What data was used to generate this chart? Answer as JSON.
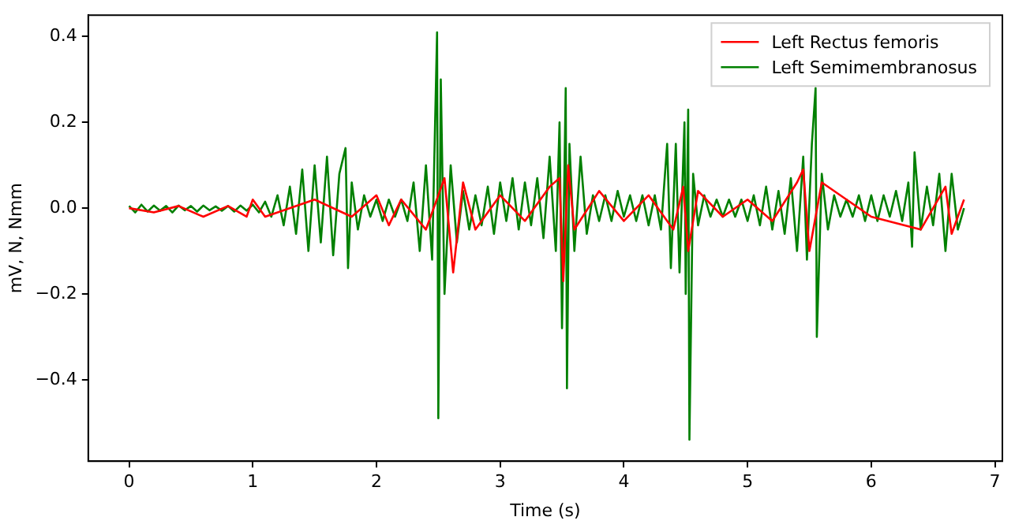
{
  "chart_data": {
    "type": "line",
    "xlabel": "Time (s)",
    "ylabel": "mV, N, Nmm",
    "xlim": [
      -0.33,
      7.06
    ],
    "ylim": [
      -0.59,
      0.45
    ],
    "xticks": [
      0,
      1,
      2,
      3,
      4,
      5,
      6,
      7
    ],
    "yticks": [
      {
        "value": -0.4,
        "label": "−0.4"
      },
      {
        "value": -0.2,
        "label": "−0.2"
      },
      {
        "value": 0,
        "label": "0.0"
      },
      {
        "value": 0.2,
        "label": "0.2"
      },
      {
        "value": 0.4,
        "label": "0.4"
      }
    ],
    "legend": "top right",
    "grid": false,
    "marker": "none",
    "line_style": "solid",
    "series": [
      {
        "name": "Left Rectus femoris",
        "color": "#ff0000",
        "x": [
          0,
          0.2,
          0.4,
          0.6,
          0.8,
          0.95,
          1.0,
          1.1,
          1.5,
          1.8,
          2.0,
          2.1,
          2.2,
          2.4,
          2.55,
          2.62,
          2.7,
          2.8,
          3.0,
          3.2,
          3.4,
          3.48,
          3.51,
          3.55,
          3.6,
          3.8,
          4.0,
          4.2,
          4.4,
          4.48,
          4.52,
          4.6,
          4.8,
          5.0,
          5.2,
          5.4,
          5.45,
          5.5,
          5.6,
          5.8,
          6.0,
          6.4,
          6.6,
          6.65,
          6.75
        ],
        "values": [
          0,
          -0.01,
          0.005,
          -0.02,
          0.005,
          -0.02,
          0.02,
          -0.02,
          0.02,
          -0.02,
          0.03,
          -0.04,
          0.02,
          -0.05,
          0.07,
          -0.15,
          0.06,
          -0.05,
          0.03,
          -0.03,
          0.05,
          0.07,
          -0.17,
          0.1,
          -0.05,
          0.04,
          -0.03,
          0.03,
          -0.05,
          0.05,
          -0.1,
          0.04,
          -0.02,
          0.02,
          -0.03,
          0.06,
          0.09,
          -0.1,
          0.06,
          0.02,
          -0.02,
          -0.05,
          0.05,
          -0.06,
          0.02
        ]
      },
      {
        "name": "Left Semimembranosus",
        "color": "#008000",
        "x": [
          0,
          0.05,
          0.1,
          0.15,
          0.2,
          0.25,
          0.3,
          0.35,
          0.4,
          0.45,
          0.5,
          0.55,
          0.6,
          0.65,
          0.7,
          0.75,
          0.8,
          0.85,
          0.9,
          0.95,
          1.0,
          1.05,
          1.1,
          1.15,
          1.2,
          1.25,
          1.3,
          1.35,
          1.4,
          1.45,
          1.5,
          1.55,
          1.6,
          1.65,
          1.7,
          1.75,
          1.77,
          1.8,
          1.85,
          1.9,
          1.95,
          2.0,
          2.05,
          2.1,
          2.15,
          2.2,
          2.25,
          2.3,
          2.35,
          2.4,
          2.45,
          2.49,
          2.5,
          2.52,
          2.55,
          2.6,
          2.65,
          2.7,
          2.75,
          2.8,
          2.85,
          2.9,
          2.95,
          3.0,
          3.05,
          3.1,
          3.15,
          3.2,
          3.25,
          3.3,
          3.35,
          3.4,
          3.45,
          3.48,
          3.5,
          3.53,
          3.54,
          3.56,
          3.6,
          3.65,
          3.7,
          3.75,
          3.8,
          3.85,
          3.9,
          3.95,
          4.0,
          4.05,
          4.1,
          4.15,
          4.2,
          4.25,
          4.3,
          4.35,
          4.38,
          4.42,
          4.45,
          4.49,
          4.5,
          4.52,
          4.53,
          4.56,
          4.6,
          4.65,
          4.7,
          4.75,
          4.8,
          4.85,
          4.9,
          4.95,
          5.0,
          5.05,
          5.1,
          5.15,
          5.2,
          5.25,
          5.3,
          5.35,
          5.4,
          5.45,
          5.48,
          5.52,
          5.55,
          5.56,
          5.6,
          5.65,
          5.7,
          5.75,
          5.8,
          5.85,
          5.9,
          5.95,
          6.0,
          6.05,
          6.1,
          6.15,
          6.2,
          6.25,
          6.3,
          6.33,
          6.35,
          6.4,
          6.45,
          6.5,
          6.55,
          6.6,
          6.65,
          6.7,
          6.75
        ],
        "values": [
          0.005,
          -0.01,
          0.008,
          -0.008,
          0.006,
          -0.006,
          0.005,
          -0.01,
          0.006,
          -0.005,
          0.005,
          -0.008,
          0.006,
          -0.005,
          0.004,
          -0.006,
          0.005,
          -0.008,
          0.006,
          -0.006,
          0.008,
          -0.01,
          0.015,
          -0.02,
          0.03,
          -0.04,
          0.05,
          -0.06,
          0.09,
          -0.1,
          0.1,
          -0.08,
          0.12,
          -0.11,
          0.08,
          0.14,
          -0.14,
          0.06,
          -0.05,
          0.03,
          -0.02,
          0.02,
          -0.03,
          0.02,
          -0.02,
          0.02,
          -0.03,
          0.06,
          -0.1,
          0.1,
          -0.12,
          0.41,
          -0.49,
          0.3,
          -0.2,
          0.1,
          -0.08,
          0.04,
          -0.05,
          0.03,
          -0.04,
          0.05,
          -0.06,
          0.06,
          -0.03,
          0.07,
          -0.05,
          0.06,
          -0.04,
          0.07,
          -0.07,
          0.12,
          -0.1,
          0.2,
          -0.28,
          0.28,
          -0.42,
          0.15,
          -0.1,
          0.12,
          -0.06,
          0.03,
          -0.03,
          0.03,
          -0.03,
          0.04,
          -0.02,
          0.03,
          -0.03,
          0.03,
          -0.04,
          0.03,
          -0.05,
          0.15,
          -0.14,
          0.15,
          -0.15,
          0.2,
          -0.2,
          0.23,
          -0.54,
          0.08,
          -0.04,
          0.03,
          -0.02,
          0.02,
          -0.02,
          0.02,
          -0.02,
          0.02,
          -0.03,
          0.03,
          -0.04,
          0.05,
          -0.05,
          0.04,
          -0.06,
          0.07,
          -0.1,
          0.12,
          -0.12,
          0.15,
          0.28,
          -0.3,
          0.08,
          -0.05,
          0.03,
          -0.02,
          0.02,
          -0.02,
          0.03,
          -0.03,
          0.03,
          -0.03,
          0.03,
          -0.02,
          0.04,
          -0.03,
          0.06,
          -0.09,
          0.13,
          -0.05,
          0.05,
          -0.04,
          0.08,
          -0.1,
          0.08,
          -0.05,
          0
        ]
      }
    ]
  }
}
